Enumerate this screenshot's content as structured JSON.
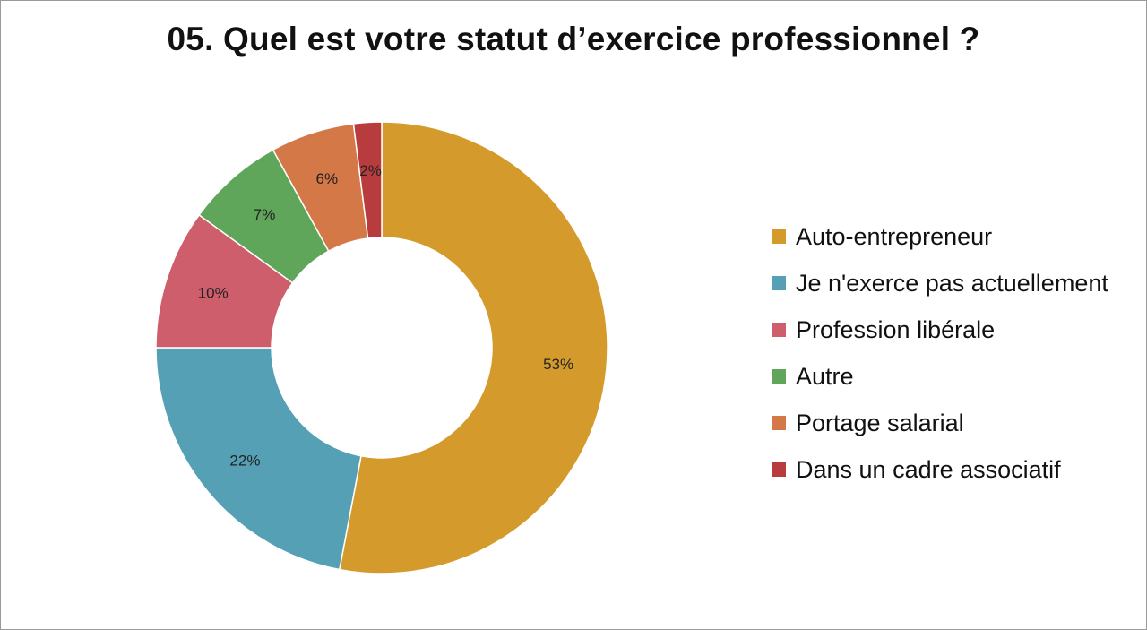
{
  "chart_data": {
    "type": "pie",
    "variant": "donut",
    "title": "05. Quel est votre statut d’exercice professionnel ?",
    "categories": [
      "Auto-entrepreneur",
      "Je n'exerce pas actuellement",
      "Profession libérale",
      "Autre",
      "Portage salarial",
      "Dans un cadre associatif"
    ],
    "values": [
      53,
      22,
      10,
      7,
      6,
      2
    ],
    "data_labels": [
      "53%",
      "22%",
      "10%",
      "7%",
      "6%",
      "2%"
    ],
    "colors": [
      "#D49B2C",
      "#55A0B5",
      "#CF5E6C",
      "#5FA65A",
      "#D47848",
      "#B83C3E"
    ],
    "legend_position": "right"
  }
}
